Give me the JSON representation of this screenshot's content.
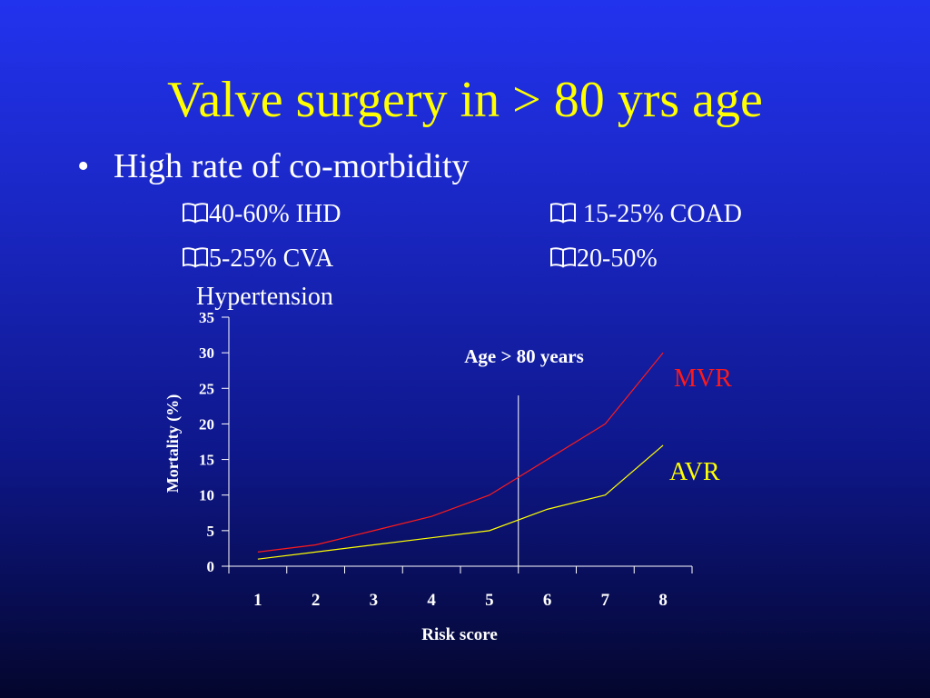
{
  "slide": {
    "title": "Valve surgery in > 80 yrs age",
    "bullet": "High rate of co-morbidity",
    "items": [
      {
        "text": "40-60% IHD",
        "icon": "book-icon"
      },
      {
        "text": "15-25% COAD",
        "icon": "book-icon"
      },
      {
        "text": "5-25% CVA",
        "icon": "book-icon"
      },
      {
        "text": "20-50%",
        "icon": "book-icon"
      },
      {
        "text": "Hypertension"
      }
    ]
  },
  "chart_data": {
    "type": "line",
    "categories": [
      1,
      2,
      3,
      4,
      5,
      6,
      7,
      8
    ],
    "series": [
      {
        "name": "MVR",
        "color": "#ff1a1a",
        "values": [
          2,
          3,
          5,
          7,
          10,
          15,
          20,
          30
        ]
      },
      {
        "name": "AVR",
        "color": "#ffff00",
        "values": [
          1,
          2,
          3,
          4,
          5,
          8,
          10,
          17
        ]
      }
    ],
    "xlabel": "Risk score",
    "ylabel": "Mortality (%)",
    "ylim": [
      0,
      35
    ],
    "yticks": [
      0,
      5,
      10,
      15,
      20,
      25,
      30,
      35
    ],
    "annotation": "Age > 80 years",
    "vertical_marker_x": 5.5,
    "vertical_marker_top": 24,
    "grid": false
  }
}
